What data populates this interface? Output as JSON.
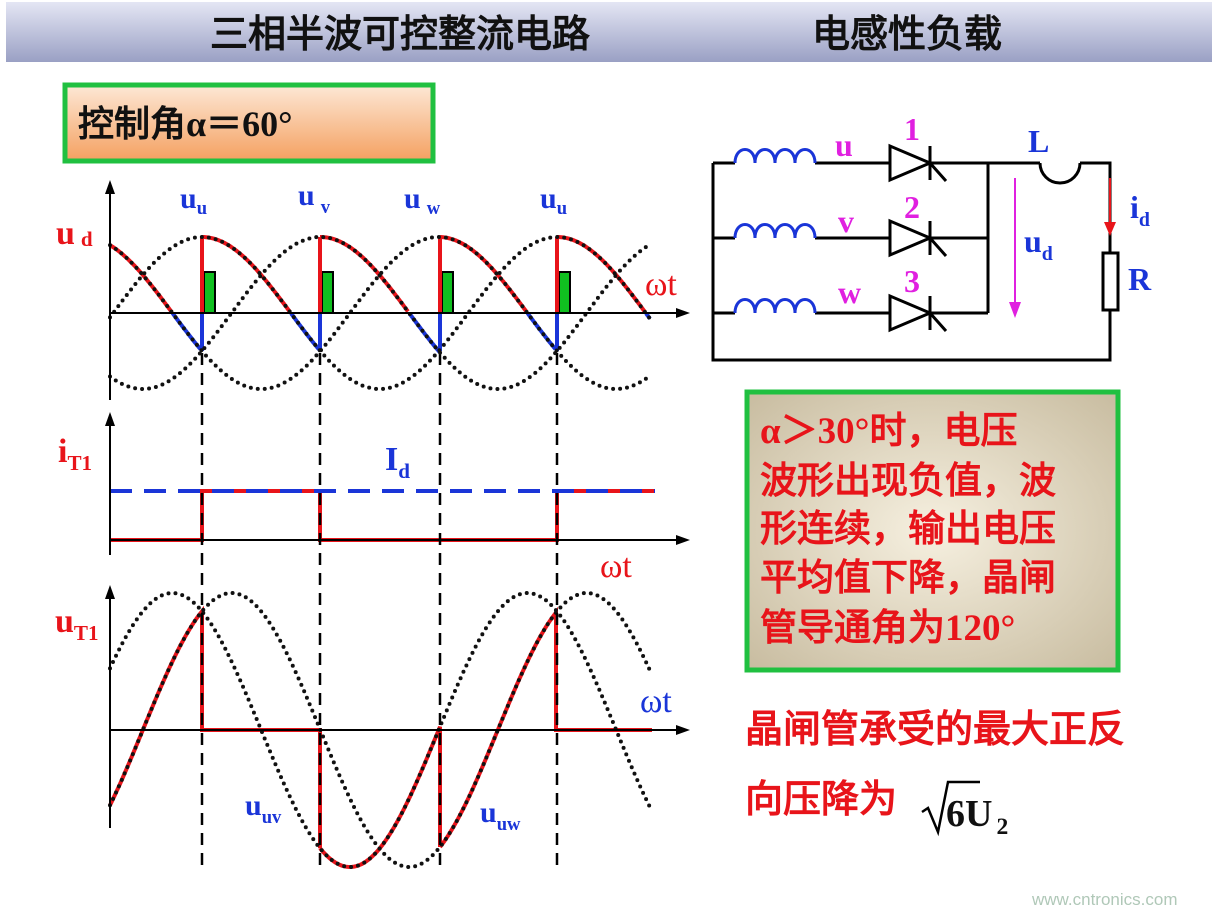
{
  "header": {
    "title": "三相半波可控整流电路",
    "subtitle": "电感性负载"
  },
  "angle_box": "控制角α＝60°",
  "waveforms": {
    "ud": {
      "main": "u",
      "sub": "d"
    },
    "phase_labels": [
      {
        "main": "u",
        "sub": "u"
      },
      {
        "main": "u",
        "sub": "v"
      },
      {
        "main": "u",
        "sub": "w"
      },
      {
        "main": "u",
        "sub": "u"
      }
    ],
    "axis_labels": [
      "ωt",
      "ωt",
      "ωt"
    ],
    "it1": {
      "main": "i",
      "sub": "T1"
    },
    "id": {
      "main": "I",
      "sub": "d"
    },
    "ut1": {
      "main": "u",
      "sub": "T1"
    },
    "uuv": {
      "main": "u",
      "sub": "uv"
    },
    "uuw": {
      "main": "u",
      "sub": "uw"
    }
  },
  "circuit": {
    "phases": [
      "u",
      "v",
      "w"
    ],
    "thyristors": [
      "1",
      "2",
      "3"
    ],
    "inductor": "L",
    "current": {
      "main": "i",
      "sub": "d"
    },
    "voltage": {
      "main": "u",
      "sub": "d"
    },
    "resistor": "R"
  },
  "note": {
    "lines": [
      "α＞30°时，电压",
      "波形出现负值，波",
      "形连续，输出电压",
      "平均值下降，晶闸",
      "管导通角为120°"
    ]
  },
  "footer": {
    "lines": [
      "晶闸管承受的最大正反",
      "向压降为"
    ],
    "formula": {
      "root": "6",
      "main": "U",
      "sub": "2"
    }
  },
  "watermark": "www.cntronics.com"
}
